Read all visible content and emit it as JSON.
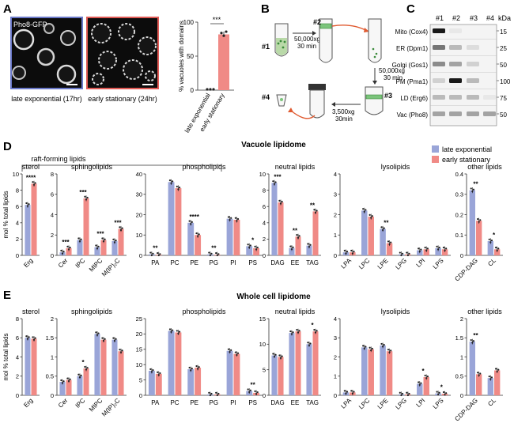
{
  "panel_labels": {
    "A": "A",
    "B": "B",
    "C": "C",
    "D": "D",
    "E": "E"
  },
  "panel_a": {
    "micro_label": "Pho8-GFP",
    "caption_left": "late exponential (17hr)",
    "caption_right": "early stationary (24hr)",
    "bar_ylabel": "% vacuoles with domains",
    "significance": "***",
    "conditions": [
      "late exponential",
      "early stationary"
    ],
    "ticks": [
      "0",
      "50",
      "100"
    ]
  },
  "panel_b": {
    "tube_labels": [
      "#1",
      "#2",
      "#3",
      "#4"
    ],
    "spin_1": [
      "50,000xg",
      "30 min"
    ],
    "spin_2": [
      "50,000xg",
      "30 min"
    ],
    "spin_3": [
      "3,500xg",
      "30min"
    ]
  },
  "panel_c": {
    "kda_label": "kDa",
    "lanes": [
      "#1",
      "#2",
      "#3",
      "#4"
    ],
    "rows": [
      {
        "label": "Mito (Cox4)",
        "marker": "15"
      },
      {
        "label": "ER (Dpm1)",
        "marker": "25"
      },
      {
        "label": "Golgi (Gos1)",
        "marker": "50"
      },
      {
        "label": "PM (Pma1)",
        "marker": "100"
      },
      {
        "label": "LD (Erg6)",
        "marker": "75"
      },
      {
        "label": "Vac (Pho8)",
        "marker": "50"
      }
    ]
  },
  "colors": {
    "late": "#9aa5d8",
    "early": "#f08a86"
  },
  "legend": [
    "late exponential",
    "early stationary"
  ],
  "chart_data": [
    {
      "type": "bar",
      "id": "D",
      "title": "Vacuole lipidome",
      "ylabel": "mol % total lipids",
      "bracket_label": "raft-forming lipids",
      "groups": [
        {
          "title": "sterol",
          "ylim": [
            0,
            10
          ],
          "ticks": [
            0,
            2,
            4,
            6,
            8,
            10
          ],
          "categories": [
            "Erg"
          ],
          "late": [
            6.2
          ],
          "early": [
            8.8
          ],
          "sig": [
            "****"
          ]
        },
        {
          "title": "sphingolipids",
          "ylim": [
            0,
            8
          ],
          "ticks": [
            0,
            2,
            4,
            6,
            8
          ],
          "categories": [
            "Cer",
            "IPC",
            "MIPC",
            "M(IP)₂C"
          ],
          "late": [
            0.3,
            1.5,
            0.8,
            1.4
          ],
          "early": [
            0.7,
            5.6,
            1.5,
            2.6
          ],
          "sig": [
            "***",
            "***",
            "***",
            "***"
          ]
        },
        {
          "title": "phospholipids",
          "ylim": [
            0,
            40
          ],
          "ticks": [
            0,
            10,
            20,
            30,
            40
          ],
          "categories": [
            "PA",
            "PC",
            "PE",
            "PG",
            "PI",
            "PS"
          ],
          "late": [
            0.5,
            36,
            16,
            0.5,
            18,
            4.5
          ],
          "early": [
            0.3,
            33,
            10,
            0.3,
            17.5,
            3.5
          ],
          "sig": [
            "**",
            "",
            "****",
            "**",
            "",
            "*"
          ]
        },
        {
          "title": "neutral lipids",
          "ylim": [
            0,
            10
          ],
          "ticks": [
            0,
            2,
            4,
            6,
            8,
            10
          ],
          "categories": [
            "DAG",
            "EE",
            "TAG"
          ],
          "late": [
            8.9,
            0.9,
            1.2
          ],
          "early": [
            6.5,
            2.3,
            5.4
          ],
          "sig": [
            "***",
            "**",
            "**"
          ]
        },
        {
          "title": "lysolipids",
          "ylim": [
            0,
            4
          ],
          "ticks": [
            0,
            1,
            2,
            3,
            4
          ],
          "categories": [
            "LPA",
            "LPC",
            "LPE",
            "LPG",
            "LPI",
            "LPS"
          ],
          "late": [
            0.15,
            2.2,
            1.3,
            0.05,
            0.25,
            0.35
          ],
          "early": [
            0.15,
            1.9,
            0.6,
            0.05,
            0.3,
            0.3
          ],
          "sig": [
            "",
            "",
            "**",
            "",
            "",
            ""
          ]
        },
        {
          "title": "other lipids",
          "ylim": [
            0,
            0.4
          ],
          "ticks": [
            0,
            0.1,
            0.2,
            0.3,
            0.4
          ],
          "categories": [
            "CDP-DAG",
            "CL"
          ],
          "late": [
            0.32,
            0.07
          ],
          "early": [
            0.17,
            0.03
          ],
          "sig": [
            "**",
            "*"
          ]
        }
      ]
    },
    {
      "type": "bar",
      "id": "E",
      "title": "Whole cell lipidome",
      "ylabel": "mol % total lipids",
      "groups": [
        {
          "title": "sterol",
          "ylim": [
            0,
            8
          ],
          "ticks": [
            0,
            2,
            4,
            6,
            8
          ],
          "categories": [
            "Erg"
          ],
          "late": [
            6.0
          ],
          "early": [
            5.9
          ],
          "sig": [
            ""
          ]
        },
        {
          "title": "sphingolipids",
          "ylim": [
            0,
            2
          ],
          "ticks": [
            0,
            0.5,
            1.0,
            1.5,
            2.0
          ],
          "categories": [
            "Cer",
            "IPC",
            "MIPC",
            "M(IP)₂C"
          ],
          "late": [
            0.35,
            0.5,
            1.6,
            1.45
          ],
          "early": [
            0.4,
            0.7,
            1.45,
            1.15
          ],
          "sig": [
            "",
            "*",
            "",
            ""
          ]
        },
        {
          "title": "phospholipids",
          "ylim": [
            0,
            25
          ],
          "ticks": [
            0,
            5,
            10,
            15,
            20,
            25
          ],
          "categories": [
            "PA",
            "PC",
            "PE",
            "PG",
            "PI",
            "PS"
          ],
          "late": [
            8,
            21,
            8.5,
            0.3,
            14.5,
            1.4
          ],
          "early": [
            7,
            20.5,
            9,
            0.3,
            13.5,
            0.8
          ],
          "sig": [
            "",
            "",
            "",
            "",
            "",
            "**"
          ]
        },
        {
          "title": "neutral lipids",
          "ylim": [
            0,
            15
          ],
          "ticks": [
            0,
            5,
            10,
            15
          ],
          "categories": [
            "DAG",
            "EE",
            "TAG"
          ],
          "late": [
            7.8,
            12.2,
            10
          ],
          "early": [
            7.5,
            12.5,
            12.5
          ],
          "sig": [
            "",
            "",
            "*"
          ]
        },
        {
          "title": "lysolipids",
          "ylim": [
            0,
            4
          ],
          "ticks": [
            0,
            1,
            2,
            3,
            4
          ],
          "categories": [
            "LPA",
            "LPC",
            "LPE",
            "LPG",
            "LPI",
            "LPS"
          ],
          "late": [
            0.15,
            2.5,
            2.6,
            0.05,
            0.6,
            0.1
          ],
          "early": [
            0.15,
            2.4,
            2.3,
            0.05,
            0.95,
            0.08
          ],
          "sig": [
            "",
            "",
            "",
            "",
            "*",
            "*"
          ]
        },
        {
          "title": "other lipids",
          "ylim": [
            0,
            2
          ],
          "ticks": [
            0,
            0.5,
            1.0,
            1.5,
            2.0
          ],
          "categories": [
            "CDP-DAG",
            "CL"
          ],
          "late": [
            1.4,
            0.45
          ],
          "early": [
            0.55,
            0.65
          ],
          "sig": [
            "**",
            ""
          ]
        }
      ]
    }
  ]
}
